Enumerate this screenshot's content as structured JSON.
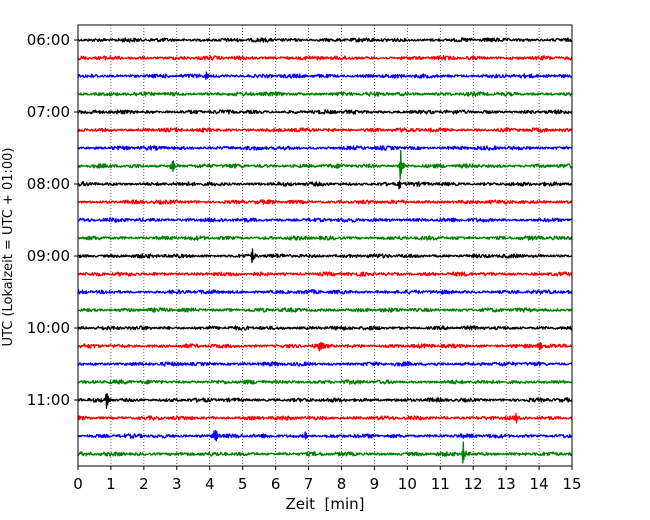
{
  "chart_data": {
    "type": "line",
    "title": "",
    "xlabel": "Zeit  [min]",
    "ylabel": "UTC (Lokalzeit = UTC + 01:00)",
    "xlim": [
      0,
      15
    ],
    "x_ticks": [
      "0",
      "1",
      "2",
      "3",
      "4",
      "5",
      "6",
      "7",
      "8",
      "9",
      "10",
      "11",
      "12",
      "13",
      "14",
      "15"
    ],
    "y_ticks": [
      "06:00",
      "07:00",
      "08:00",
      "09:00",
      "10:00",
      "11:00"
    ],
    "grid": "vertical dotted",
    "trace_colors": [
      "#000000",
      "#ff0000",
      "#0000ff",
      "#008000"
    ],
    "trace_interval_minutes": 15,
    "traces": [
      {
        "start": "06:00",
        "color": "#000000",
        "events": []
      },
      {
        "start": "06:15",
        "color": "#ff0000",
        "events": []
      },
      {
        "start": "06:30",
        "color": "#0000ff",
        "events": [
          {
            "t": 3.9,
            "amp": 9
          }
        ]
      },
      {
        "start": "06:45",
        "color": "#008000",
        "events": []
      },
      {
        "start": "07:00",
        "color": "#000000",
        "events": []
      },
      {
        "start": "07:15",
        "color": "#ff0000",
        "events": []
      },
      {
        "start": "07:30",
        "color": "#0000ff",
        "events": []
      },
      {
        "start": "07:45",
        "color": "#008000",
        "events": [
          {
            "t": 2.85,
            "amp": 13
          },
          {
            "t": 9.8,
            "amp": 18
          }
        ]
      },
      {
        "start": "08:00",
        "color": "#000000",
        "events": [
          {
            "t": 9.75,
            "amp": 6
          }
        ]
      },
      {
        "start": "08:15",
        "color": "#ff0000",
        "events": []
      },
      {
        "start": "08:30",
        "color": "#0000ff",
        "events": []
      },
      {
        "start": "08:45",
        "color": "#008000",
        "events": []
      },
      {
        "start": "09:00",
        "color": "#000000",
        "events": [
          {
            "t": 5.3,
            "amp": 8
          }
        ]
      },
      {
        "start": "09:15",
        "color": "#ff0000",
        "events": []
      },
      {
        "start": "09:30",
        "color": "#0000ff",
        "events": []
      },
      {
        "start": "09:45",
        "color": "#008000",
        "events": []
      },
      {
        "start": "10:00",
        "color": "#000000",
        "events": []
      },
      {
        "start": "10:15",
        "color": "#ff0000",
        "events": [
          {
            "t": 7.35,
            "amp": 12
          },
          {
            "t": 14.0,
            "amp": 9
          }
        ]
      },
      {
        "start": "10:30",
        "color": "#0000ff",
        "events": []
      },
      {
        "start": "10:45",
        "color": "#008000",
        "events": []
      },
      {
        "start": "11:00",
        "color": "#000000",
        "events": [
          {
            "t": 0.85,
            "amp": 14
          }
        ]
      },
      {
        "start": "11:15",
        "color": "#ff0000",
        "events": [
          {
            "t": 13.3,
            "amp": 6
          }
        ]
      },
      {
        "start": "11:30",
        "color": "#0000ff",
        "events": [
          {
            "t": 4.15,
            "amp": 14
          },
          {
            "t": 6.9,
            "amp": 6
          }
        ]
      },
      {
        "start": "11:45",
        "color": "#008000",
        "events": [
          {
            "t": 11.7,
            "amp": 13
          }
        ]
      }
    ]
  }
}
